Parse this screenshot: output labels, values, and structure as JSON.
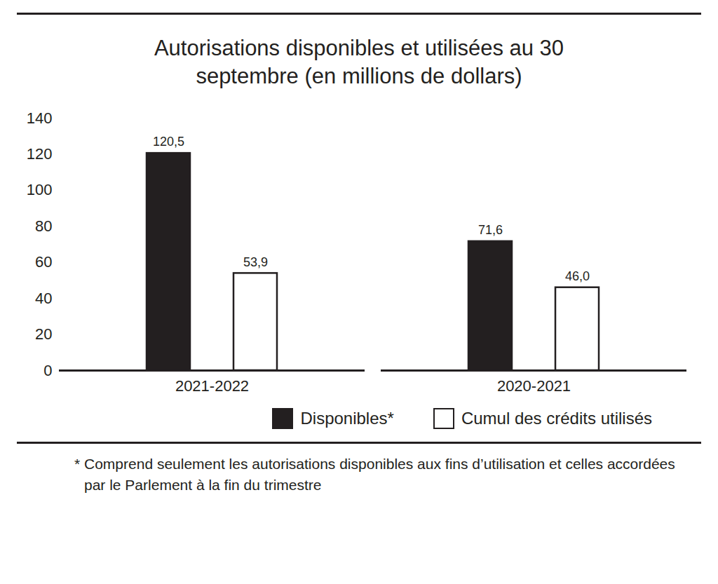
{
  "chart_data": {
    "type": "bar",
    "title": "Autorisations disponibles et utilisées au 30 septembre (en millions de dollars)",
    "categories": [
      "2021-2022",
      "2020-2021"
    ],
    "series": [
      {
        "name": "Disponibles*",
        "color": "#231f20",
        "values": [
          120.5,
          71.6
        ],
        "value_labels": [
          "120,5",
          "71,6"
        ]
      },
      {
        "name": "Cumul des crédits utilisés",
        "color": "#ffffff",
        "values": [
          53.9,
          46.0
        ],
        "value_labels": [
          "53,9",
          "46,0"
        ]
      }
    ],
    "ylim": [
      0,
      140
    ],
    "yticks": [
      0,
      20,
      40,
      60,
      80,
      100,
      120,
      140
    ],
    "grid": false,
    "data_labels": true,
    "legend": "bottom",
    "footnote": "* Comprend seulement les autorisations disponibles aux fins d’utilisation et celles accordées par le Parlement à la fin du trimestre"
  }
}
